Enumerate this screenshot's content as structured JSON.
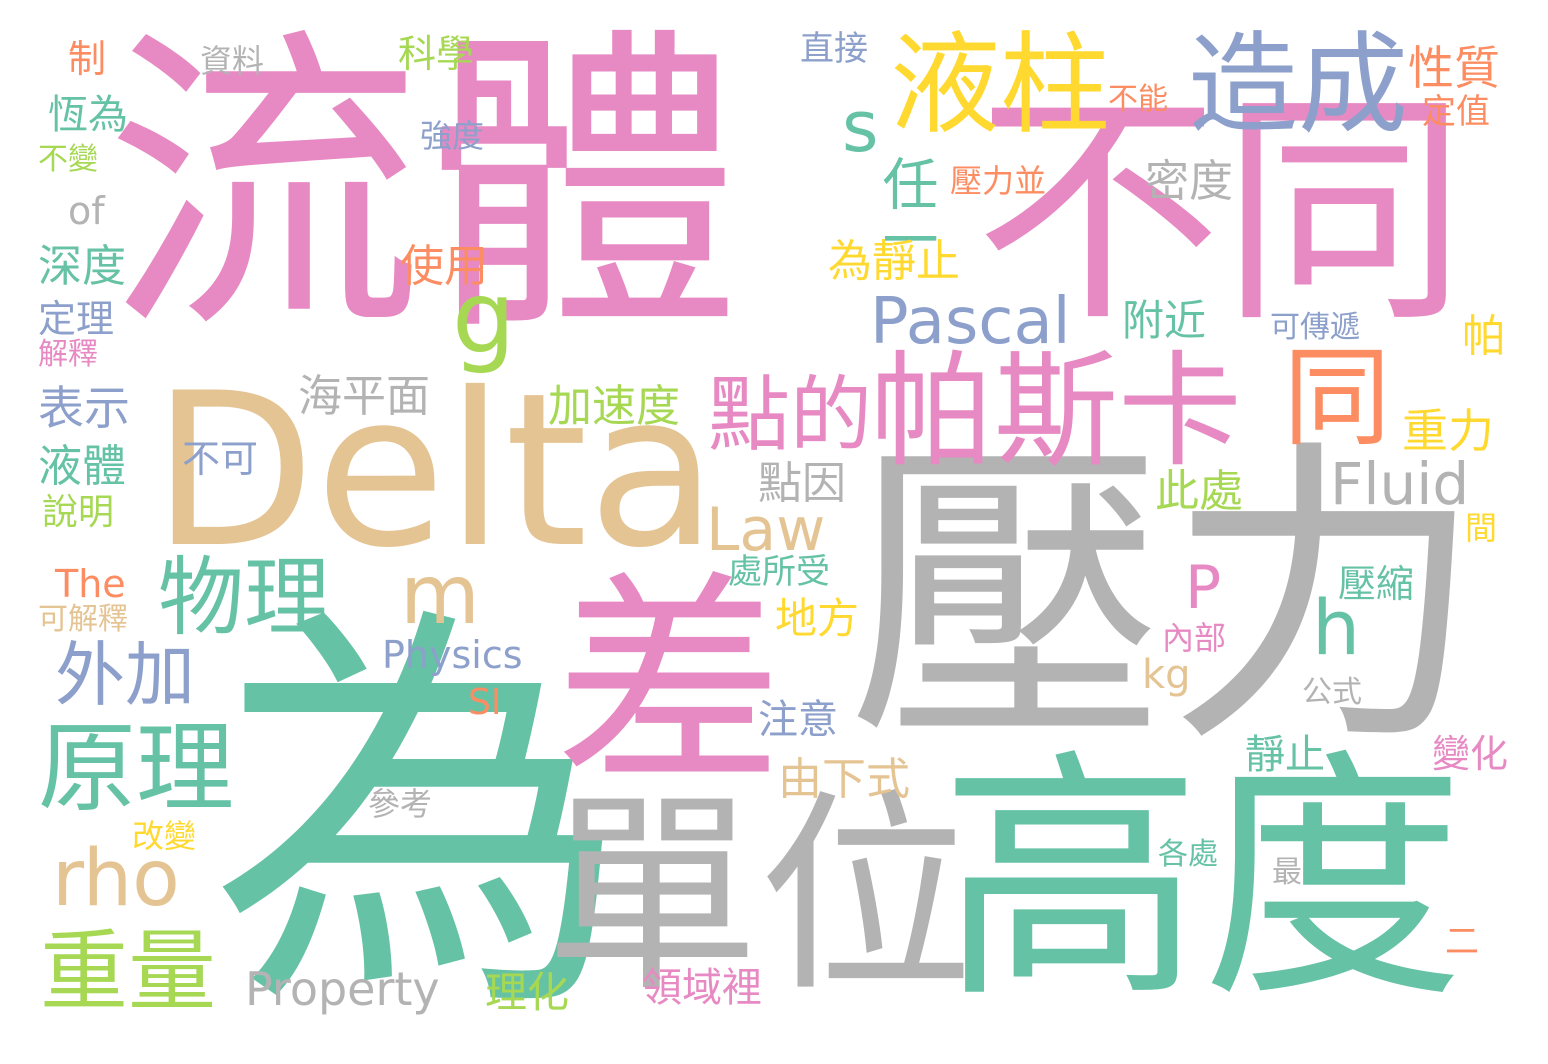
{
  "words": {
    "liuti": "流體",
    "butong": "不同",
    "yali": "壓力",
    "wei": "為",
    "delta": "Delta",
    "cha": "差",
    "danwei": "單位",
    "gaodu": "高度",
    "yezhu": "液柱",
    "zaocheng": "造成",
    "pasika": "帕斯卡",
    "diande": "點的",
    "tong": "同",
    "wuli": "物理",
    "yuanli": "原理",
    "zhongliang": "重量",
    "waijia": "外加",
    "rho": "rho",
    "g": "g",
    "m": "m",
    "s": "s",
    "h": "h",
    "p": "P",
    "law": "Law",
    "pascal": "Pascal",
    "fluid": "Fluid",
    "physics": "Physics",
    "property": "Property",
    "the": "The",
    "of": "of",
    "kg": "kg",
    "si": "SI",
    "renyi": "任一",
    "zhi": "制",
    "ziliao": "資料",
    "kexue": "科學",
    "zhijie": "直接",
    "xingzhi": "性質",
    "dingzhi": "定值",
    "buneng": "不能",
    "hengwei": "恆為",
    "qiangdu": "強度",
    "bubian": "不變",
    "yalibing": "壓力並",
    "midu": "密度",
    "shendu": "深度",
    "shiyong": "使用",
    "weijingzhi": "為靜止",
    "dingli": "定理",
    "fujin": "附近",
    "kechuandi": "可傳遞",
    "pa": "帕",
    "jieshi": "解釋",
    "biaoshi": "表示",
    "haipingmian": "海平面",
    "jiasudu": "加速度",
    "zhongli": "重力",
    "yeti": "液體",
    "buke": "不可",
    "dianyin": "點因",
    "shuoming": "說明",
    "cichu": "此處",
    "jian": "間",
    "chusuoshou": "處所受",
    "yasuo": "壓縮",
    "kejieshi": "可解釋",
    "difang": "地方",
    "neibu": "內部",
    "gongshi": "公式",
    "zhuyi": "注意",
    "jingzhi": "靜止",
    "bianhua": "變化",
    "youxiashi": "由下式",
    "cankao": "參考",
    "gaibian": "改變",
    "gechu": "各處",
    "zui": "最",
    "er": "二",
    "lihua": "理化",
    "lingyuli": "領域裡"
  },
  "palette": {
    "green": "#66c2a5",
    "pink": "#e78ac3",
    "gray": "#b3b3b3",
    "tan": "#e5c494",
    "blue": "#8da0cb",
    "orange": "#fc8d62",
    "lime": "#a6d854",
    "yellow": "#ffd92f",
    "background": "#ffffff"
  }
}
